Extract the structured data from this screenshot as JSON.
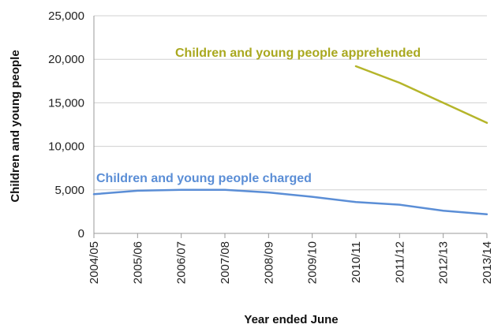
{
  "chart_data": {
    "type": "line",
    "title": "",
    "xlabel": "Year ended June",
    "ylabel": "Children and young people",
    "categories": [
      "2004/05",
      "2005/06",
      "2006/07",
      "2007/08",
      "2008/09",
      "2009/10",
      "2010/11",
      "2011/12",
      "2012/13",
      "2013/14"
    ],
    "ylim": [
      0,
      25000
    ],
    "yticks": [
      0,
      5000,
      10000,
      15000,
      20000,
      25000
    ],
    "ytick_labels": [
      "0",
      "5,000",
      "10,000",
      "15,000",
      "20,000",
      "25,000"
    ],
    "grid": "horizontal",
    "legend": "inline labels",
    "series": [
      {
        "name": "Children and young people charged",
        "color": "#5b8ed6",
        "values": [
          4500,
          4900,
          5000,
          5000,
          4700,
          4200,
          3600,
          3300,
          2600,
          2200
        ]
      },
      {
        "name": "Children and young people apprehended",
        "color": "#b5b52a",
        "values": [
          null,
          null,
          null,
          null,
          null,
          null,
          19200,
          17300,
          15000,
          12700
        ]
      }
    ]
  }
}
